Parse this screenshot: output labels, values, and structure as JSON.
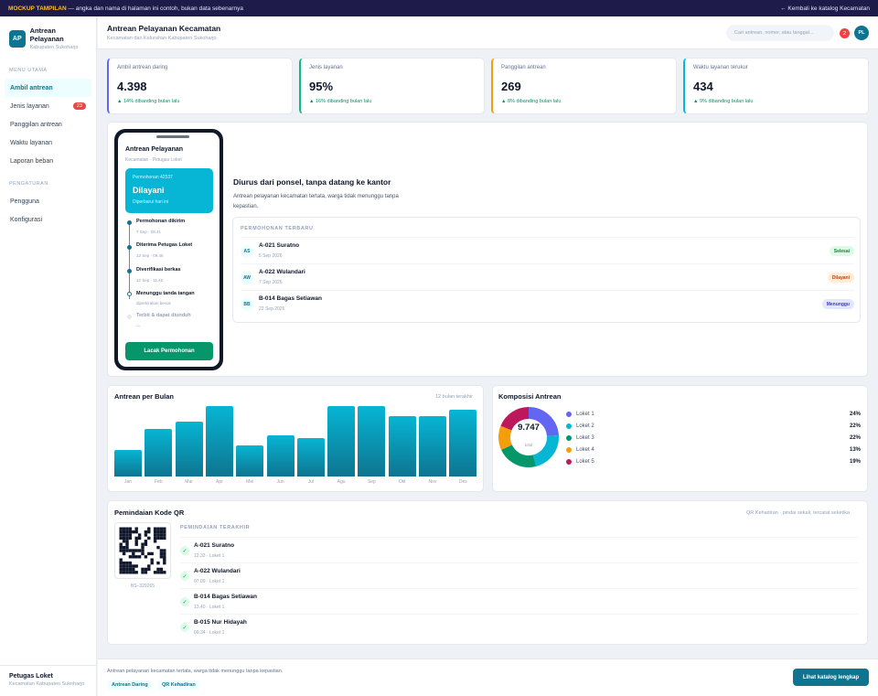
{
  "banner": {
    "tag": "MOCKUP TAMPILAN",
    "note": "— angka dan nama di halaman ini contoh, bukan data sebenarnya",
    "back_link": "← Kembali ke katalog Kecamatan"
  },
  "sidebar": {
    "logo": "AP",
    "app_name": "Antrean Pelayanan",
    "app_sub": "Kabupaten Sukoharjo",
    "section_main": "MENU UTAMA",
    "items": [
      {
        "label": "Ambil antrean",
        "active": true
      },
      {
        "label": "Jenis layanan",
        "badge": "23"
      },
      {
        "label": "Panggilan antrean"
      },
      {
        "label": "Waktu layanan"
      },
      {
        "label": "Laporan beban"
      }
    ],
    "section_settings": "PENGATURAN",
    "settings": [
      {
        "label": "Pengguna"
      },
      {
        "label": "Konfigurasi"
      }
    ],
    "user_name": "Petugas Loket",
    "user_org": "Kecamatan Kabupaten Sukoharjo"
  },
  "header": {
    "title": "Antrean Pelayanan Kecamatan",
    "subtitle": "Kecamatan dan Kelurahan Kabupaten Sukoharjo",
    "search_placeholder": "Cari antrean, nomor, atau tanggal...",
    "notif_count": "2",
    "avatar": "PL"
  },
  "kpis": [
    {
      "label": "Ambil antrean daring",
      "value": "4.398",
      "delta": "▲ 14% dibanding bulan lalu",
      "color": "#6366f1"
    },
    {
      "label": "Jenis layanan",
      "value": "95%",
      "delta": "▲ 16% dibanding bulan lalu",
      "color": "#10b981"
    },
    {
      "label": "Panggilan antrean",
      "value": "269",
      "delta": "▲ 8% dibanding bulan lalu",
      "color": "#f59e0b"
    },
    {
      "label": "Waktu layanan terukur",
      "value": "434",
      "delta": "▲ 9% dibanding bulan lalu",
      "color": "#06b6d4"
    }
  ],
  "phone": {
    "title": "Antrean Pelayanan",
    "subtitle": "Kecamatan · Petugas Loket",
    "request_no": "Permohonan 42537",
    "status": "Dilayani",
    "updated": "Diperbarui hari ini",
    "timeline": [
      {
        "title": "Permohonan dikirim",
        "time": "7 Sep · 08.41",
        "state": "done"
      },
      {
        "title": "Diterima Petugas Loket",
        "time": "12 Sep · 09.46",
        "state": "done"
      },
      {
        "title": "Diverifikasi berkas",
        "time": "12 Sep · 11.45",
        "state": "done"
      },
      {
        "title": "Menunggu tanda tangan",
        "time": "diperkirakan besok",
        "state": "current"
      },
      {
        "title": "Terbit & dapat diunduh",
        "time": "—",
        "state": "pending"
      }
    ],
    "button": "Lacak Permohonan"
  },
  "hero": {
    "heading": "Diurus dari ponsel, tanpa datang ke kantor",
    "text": "Antrean pelayanan kecamatan tertata, warga tidak menunggu tanpa kepastian."
  },
  "recent": {
    "heading": "PERMOHONAN TERBARU",
    "rows": [
      {
        "initials": "AS",
        "name": "A-021 Suratno",
        "date": "5 Sep 2026",
        "status": "Selesai",
        "kind": "done"
      },
      {
        "initials": "AW",
        "name": "A-022 Wulandari",
        "date": "7 Sep 2026",
        "status": "Dilayani",
        "kind": "late"
      },
      {
        "initials": "BB",
        "name": "B-014 Bagas Setiawan",
        "date": "22 Sep 2026",
        "status": "Menunggu",
        "kind": "wait"
      }
    ]
  },
  "bar_chart": {
    "title": "Antrean per Bulan",
    "note": "12 bulan terakhir"
  },
  "donut": {
    "title": "Komposisi Antrean",
    "total": "9.747",
    "total_label": "total"
  },
  "chart_data": [
    {
      "type": "bar",
      "title": "Antrean per Bulan",
      "categories": [
        "Jan",
        "Feb",
        "Mar",
        "Apr",
        "Mei",
        "Jun",
        "Jul",
        "Agu",
        "Sep",
        "Okt",
        "Nov",
        "Des"
      ],
      "values": [
        38,
        68,
        78,
        100,
        44,
        59,
        54,
        100,
        100,
        86,
        86,
        95
      ],
      "ylim": [
        0,
        100
      ]
    },
    {
      "type": "pie",
      "title": "Komposisi Antrean",
      "labels": [
        "Loket 1",
        "Loket 2",
        "Loket 3",
        "Loket 4",
        "Loket 5"
      ],
      "values": [
        24,
        22,
        22,
        13,
        19
      ],
      "display": [
        "24%",
        "22%",
        "22%",
        "13%",
        "19%"
      ],
      "colors": [
        "#6366f1",
        "#06b6d4",
        "#059669",
        "#f59e0b",
        "#be185d"
      ]
    }
  ],
  "qr": {
    "title": "Pemindaian Kode QR",
    "note": "QR Kehadiran · pindai sekali, tercatat seketika",
    "code": "BS–329265",
    "heading": "PEMINDAIAN TERAKHIR",
    "rows": [
      {
        "name": "A-021 Suratno",
        "meta": "12.33 · Loket 1"
      },
      {
        "name": "A-022 Wulandari",
        "meta": "07.09 · Loket 1"
      },
      {
        "name": "B-014 Bagas Setiawan",
        "meta": "13.40 · Loket 1"
      },
      {
        "name": "B-015 Nur Hidayah",
        "meta": "09.34 · Loket 1"
      }
    ]
  },
  "footer": {
    "text": "Antrean pelayanan kecamatan tertata, warga tidak menunggu tanpa kepastian.",
    "tags": [
      "Antrean Daring",
      "QR Kehadiran"
    ],
    "button": "Lihat katalog lengkap"
  }
}
